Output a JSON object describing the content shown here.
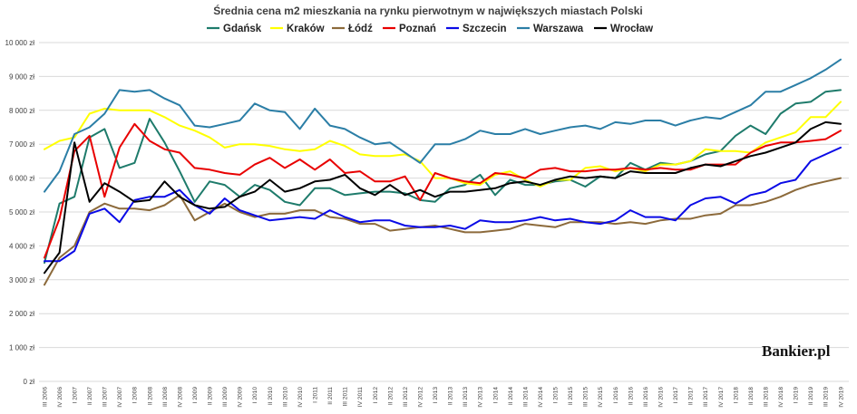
{
  "chart_data": {
    "type": "line",
    "title": "Średnia cena m2 mieszkania na rynku pierwotnym w największych miastach Polski",
    "ylim": [
      0,
      10000
    ],
    "yticks": [
      0,
      1000,
      2000,
      3000,
      4000,
      5000,
      6000,
      7000,
      8000,
      9000,
      10000
    ],
    "ytick_labels": [
      "0 zł",
      "1 000 zł",
      "2 000 zł",
      "3 000 zł",
      "4 000 zł",
      "5 000 zł",
      "6 000 zł",
      "7 000 zł",
      "8 000 zł",
      "9 000 zł",
      "10 000 zł"
    ],
    "grid": true,
    "legend_position": "top",
    "categories": [
      "III 2006",
      "IV 2006",
      "I 2007",
      "II 2007",
      "III 2007",
      "IV 2007",
      "I 2008",
      "II 2008",
      "III 2008",
      "IV 2008",
      "I 2009",
      "II 2009",
      "III 2009",
      "IV 2009",
      "I 2010",
      "II 2010",
      "III 2010",
      "IV 2010",
      "I 2011",
      "II 2011",
      "III 2011",
      "IV 2011",
      "I 2012",
      "II 2012",
      "III 2012",
      "IV 2012",
      "I 2013",
      "II 2013",
      "III 2013",
      "IV 2013",
      "I 2014",
      "II 2014",
      "III 2014",
      "IV 2014",
      "I 2015",
      "II 2015",
      "III 2015",
      "IV 2015",
      "I 2016",
      "II 2016",
      "III 2016",
      "IV 2016",
      "I 2017",
      "II 2017",
      "III 2017",
      "IV 2017",
      "I 2018",
      "II 2018",
      "III 2018",
      "IV 2018",
      "I 2019",
      "II 2019",
      "III 2019",
      "IV 2019"
    ],
    "series": [
      {
        "name": "Gdańsk",
        "color": "#1e7b6b",
        "values": [
          3500,
          5250,
          5450,
          7200,
          7450,
          6300,
          6450,
          7750,
          7050,
          6200,
          5300,
          5900,
          5800,
          5450,
          5800,
          5650,
          5300,
          5200,
          5700,
          5700,
          5500,
          5550,
          5600,
          5600,
          5550,
          5350,
          5300,
          5700,
          5800,
          6100,
          5500,
          5950,
          5800,
          5800,
          5900,
          5950,
          5750,
          6050,
          6000,
          6450,
          6250,
          6450,
          6400,
          6500,
          6700,
          6800,
          7250,
          7550,
          7300,
          7900,
          8200,
          8250,
          8550,
          8600
        ]
      },
      {
        "name": "Kraków",
        "color": "#ffff00",
        "values": [
          6850,
          7100,
          7200,
          7900,
          8050,
          8000,
          8000,
          8000,
          7800,
          7550,
          7400,
          7200,
          6900,
          7000,
          7000,
          6950,
          6850,
          6800,
          6850,
          7100,
          6950,
          6700,
          6650,
          6650,
          6700,
          6500,
          6000,
          6000,
          5850,
          5800,
          6100,
          6200,
          5950,
          5750,
          5950,
          5950,
          6300,
          6350,
          6200,
          6300,
          6200,
          6400,
          6400,
          6500,
          6850,
          6800,
          6800,
          6750,
          7050,
          7200,
          7350,
          7800,
          7800,
          8250
        ]
      },
      {
        "name": "Łódź",
        "color": "#8c6a3b",
        "values": [
          2850,
          3650,
          4000,
          5000,
          5250,
          5100,
          5100,
          5050,
          5200,
          5500,
          4750,
          5000,
          5250,
          5000,
          4850,
          4950,
          4950,
          5050,
          5050,
          4850,
          4800,
          4650,
          4650,
          4450,
          4500,
          4550,
          4600,
          4500,
          4400,
          4400,
          4450,
          4500,
          4650,
          4600,
          4550,
          4700,
          4700,
          4700,
          4650,
          4700,
          4650,
          4750,
          4800,
          4800,
          4900,
          4950,
          5200,
          5200,
          5300,
          5450,
          5650,
          5800,
          5900,
          6000
        ]
      },
      {
        "name": "Poznań",
        "color": "#e80000",
        "values": [
          3650,
          4800,
          6800,
          7250,
          5450,
          6900,
          7600,
          7100,
          6850,
          6750,
          6300,
          6250,
          6150,
          6100,
          6400,
          6600,
          6300,
          6550,
          6250,
          6550,
          6150,
          6200,
          5900,
          5900,
          6050,
          5350,
          6150,
          6000,
          5900,
          5850,
          6150,
          6100,
          6000,
          6250,
          6300,
          6200,
          6200,
          6250,
          6250,
          6300,
          6250,
          6300,
          6250,
          6250,
          6400,
          6400,
          6400,
          6750,
          6950,
          7050,
          7050,
          7100,
          7150,
          7400
        ]
      },
      {
        "name": "Szczecin",
        "color": "#0a0ae6",
        "values": [
          3550,
          3550,
          3850,
          4950,
          5100,
          4700,
          5350,
          5450,
          5450,
          5650,
          5200,
          4950,
          5400,
          5050,
          4900,
          4750,
          4800,
          4850,
          4800,
          5050,
          4850,
          4700,
          4750,
          4750,
          4600,
          4550,
          4550,
          4600,
          4500,
          4750,
          4700,
          4700,
          4750,
          4850,
          4750,
          4800,
          4700,
          4650,
          4750,
          5050,
          4850,
          4850,
          4750,
          5200,
          5400,
          5450,
          5250,
          5500,
          5600,
          5850,
          5950,
          6500,
          6700,
          6900
        ]
      },
      {
        "name": "Warszawa",
        "color": "#2b7ea6",
        "values": [
          5600,
          6200,
          7300,
          7500,
          7900,
          8600,
          8550,
          8600,
          8350,
          8150,
          7550,
          7500,
          7600,
          7700,
          8200,
          8000,
          7950,
          7450,
          8050,
          7550,
          7450,
          7200,
          7000,
          7050,
          6750,
          6450,
          7000,
          7000,
          7150,
          7400,
          7300,
          7300,
          7450,
          7300,
          7400,
          7500,
          7550,
          7450,
          7650,
          7600,
          7700,
          7700,
          7550,
          7700,
          7800,
          7750,
          7950,
          8150,
          8550,
          8550,
          8750,
          8950,
          9200,
          9500
        ]
      },
      {
        "name": "Wrocław",
        "color": "#000000",
        "values": [
          3200,
          3800,
          7050,
          5300,
          5850,
          5600,
          5300,
          5350,
          5900,
          5450,
          5200,
          5100,
          5150,
          5450,
          5600,
          5950,
          5600,
          5700,
          5900,
          5950,
          6100,
          5700,
          5500,
          5800,
          5500,
          5650,
          5450,
          5600,
          5600,
          5650,
          5700,
          5850,
          5900,
          5800,
          5950,
          6050,
          6000,
          6050,
          6000,
          6200,
          6150,
          6150,
          6150,
          6300,
          6400,
          6350,
          6500,
          6650,
          6750,
          6900,
          7050,
          7450,
          7650,
          7600
        ]
      }
    ]
  },
  "logo": {
    "brand": "Bankier",
    "suffix": ".pl"
  }
}
